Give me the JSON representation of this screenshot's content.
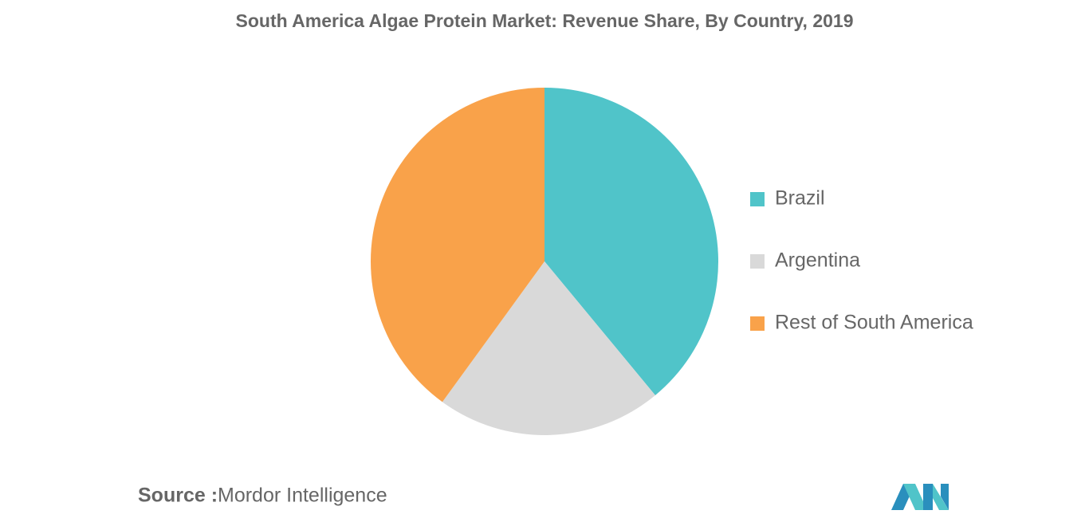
{
  "chart_data": {
    "type": "pie",
    "title": "South America Algae Protein Market: Revenue Share, By Country, 2019",
    "categories": [
      "Brazil",
      "Argentina",
      "Rest of South America"
    ],
    "values": [
      39,
      21,
      40
    ],
    "colors": [
      "#50c4c9",
      "#d9d9d9",
      "#f9a24a"
    ]
  },
  "source": {
    "label": "Source :",
    "text": "Mordor Intelligence"
  }
}
